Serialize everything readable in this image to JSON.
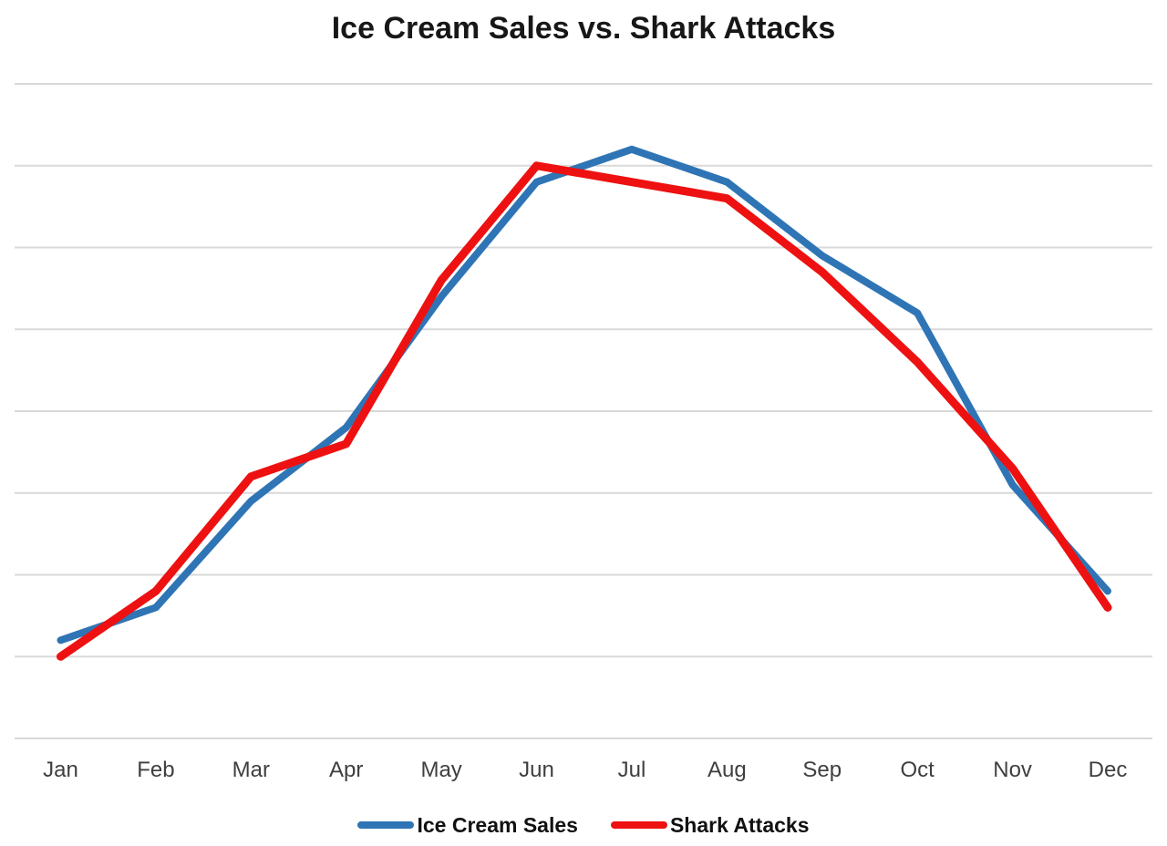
{
  "chart_data": {
    "type": "line",
    "title": "Ice Cream Sales vs. Shark Attacks",
    "categories": [
      "Jan",
      "Feb",
      "Mar",
      "Apr",
      "May",
      "Jun",
      "Jul",
      "Aug",
      "Sep",
      "Oct",
      "Nov",
      "Dec"
    ],
    "series": [
      {
        "name": "Ice Cream Sales",
        "color": "#2f75b5",
        "values": [
          12,
          16,
          29,
          38,
          54,
          68,
          72,
          68,
          59,
          52,
          31,
          18
        ]
      },
      {
        "name": "Shark Attacks",
        "color": "#ee1111",
        "values": [
          10,
          18,
          32,
          36,
          56,
          70,
          68,
          66,
          57,
          46,
          33,
          16
        ]
      }
    ],
    "xlabel": "",
    "ylabel": "",
    "ylim": [
      0,
      80
    ],
    "y_gridline_step": 10,
    "y_tick_labels_shown": false,
    "grid": "horizontal",
    "legend_position": "bottom"
  },
  "colors": {
    "gridline": "#d9d9d9",
    "title_text": "#171717",
    "axis_text": "#3f3f3f"
  }
}
